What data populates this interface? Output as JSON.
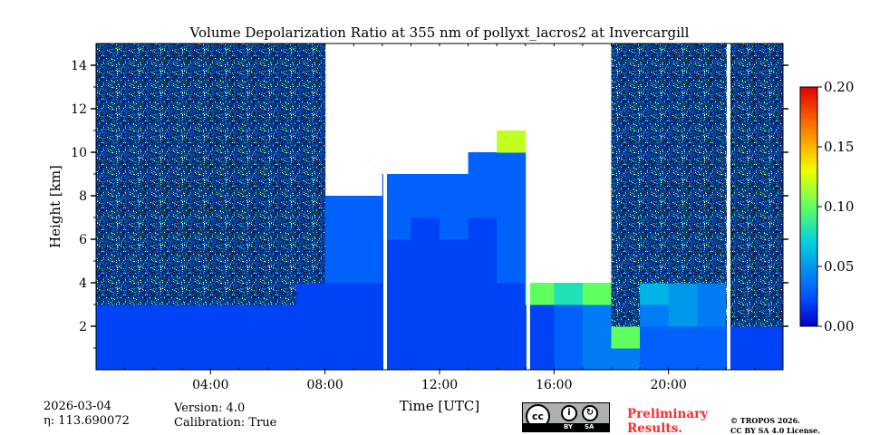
{
  "chart_data": {
    "type": "heatmap",
    "title": "Volume Depolarization Ratio at 355 nm of pollyxt_lacros2 at Invercargill",
    "xlabel": "Time [UTC]",
    "ylabel": "Height [km]",
    "xlim_hours": [
      0,
      24
    ],
    "ylim_km": [
      0,
      15
    ],
    "x_ticks": [
      {
        "v": 4,
        "label": "04:00"
      },
      {
        "v": 8,
        "label": "08:00"
      },
      {
        "v": 12,
        "label": "12:00"
      },
      {
        "v": 16,
        "label": "16:00"
      },
      {
        "v": 20,
        "label": "20:00"
      }
    ],
    "y_ticks": [
      {
        "v": 2,
        "label": "2"
      },
      {
        "v": 4,
        "label": "4"
      },
      {
        "v": 6,
        "label": "6"
      },
      {
        "v": 8,
        "label": "8"
      },
      {
        "v": 10,
        "label": "10"
      },
      {
        "v": 12,
        "label": "12"
      },
      {
        "v": 14,
        "label": "14"
      }
    ],
    "colorbar": {
      "range": [
        0,
        0.2
      ],
      "ticks": [
        {
          "v": 0,
          "label": "0.00"
        },
        {
          "v": 0.05,
          "label": "0.05"
        },
        {
          "v": 0.1,
          "label": "0.10"
        },
        {
          "v": 0.15,
          "label": "0.15"
        },
        {
          "v": 0.2,
          "label": "0.20"
        }
      ],
      "colormap": "jet"
    },
    "matrix_note": "rows = 1 km height bins from 0 km, columns = 1 h bins from 00 UTC; null = no data, N = noisy signal",
    "matrix": [
      [
        0.02,
        0.02,
        0.02,
        0.02,
        0.02,
        0.02,
        0.02,
        0.02,
        0.02,
        0.02,
        0.02,
        0.02,
        0.02,
        0.02,
        0.02,
        0.02,
        0.03,
        0.04,
        0.04,
        0.03,
        0.03,
        0.03,
        0.02,
        0.02
      ],
      [
        0.02,
        0.02,
        0.02,
        0.02,
        0.02,
        0.02,
        0.02,
        0.02,
        0.02,
        0.02,
        0.02,
        0.02,
        0.02,
        0.02,
        0.02,
        0.02,
        0.03,
        0.04,
        0.1,
        0.03,
        0.03,
        0.03,
        0.02,
        0.02
      ],
      [
        0.02,
        0.02,
        0.02,
        0.02,
        0.02,
        0.02,
        0.02,
        0.02,
        0.02,
        0.02,
        0.02,
        0.02,
        0.02,
        0.02,
        0.02,
        0.02,
        0.03,
        0.04,
        "N",
        0.04,
        0.05,
        0.04,
        "N",
        "N"
      ],
      [
        "N",
        "N",
        "N",
        "N",
        "N",
        "N",
        "N",
        0.02,
        0.02,
        0.02,
        0.02,
        0.02,
        0.02,
        0.02,
        0.02,
        0.1,
        0.08,
        0.1,
        "N",
        0.06,
        0.05,
        0.04,
        "N",
        "N"
      ],
      [
        "N",
        "N",
        "N",
        "N",
        "N",
        "N",
        "N",
        "N",
        0.03,
        0.03,
        0.02,
        0.02,
        0.02,
        0.02,
        0.03,
        null,
        null,
        null,
        "N",
        "N",
        "N",
        "N",
        "N",
        "N"
      ],
      [
        "N",
        "N",
        "N",
        "N",
        "N",
        "N",
        "N",
        "N",
        0.03,
        0.03,
        0.02,
        0.02,
        0.02,
        0.02,
        0.03,
        null,
        null,
        null,
        "N",
        "N",
        "N",
        "N",
        "N",
        "N"
      ],
      [
        "N",
        "N",
        "N",
        "N",
        "N",
        "N",
        "N",
        "N",
        0.03,
        0.03,
        0.03,
        0.02,
        0.03,
        0.02,
        0.03,
        null,
        null,
        null,
        "N",
        "N",
        "N",
        "N",
        "N",
        "N"
      ],
      [
        "N",
        "N",
        "N",
        "N",
        "N",
        "N",
        "N",
        "N",
        0.03,
        0.03,
        0.03,
        0.03,
        0.03,
        0.03,
        0.03,
        null,
        null,
        null,
        "N",
        "N",
        "N",
        "N",
        "N",
        "N"
      ],
      [
        "N",
        "N",
        "N",
        "N",
        "N",
        "N",
        "N",
        "N",
        null,
        null,
        0.03,
        0.03,
        0.03,
        0.03,
        0.03,
        null,
        null,
        null,
        "N",
        "N",
        "N",
        "N",
        "N",
        "N"
      ],
      [
        "N",
        "N",
        "N",
        "N",
        "N",
        "N",
        "N",
        "N",
        null,
        null,
        null,
        null,
        null,
        0.03,
        0.03,
        null,
        null,
        null,
        "N",
        "N",
        "N",
        "N",
        "N",
        "N"
      ],
      [
        "N",
        "N",
        "N",
        "N",
        "N",
        "N",
        "N",
        "N",
        null,
        null,
        null,
        null,
        null,
        null,
        0.12,
        null,
        null,
        null,
        "N",
        "N",
        "N",
        "N",
        "N",
        "N"
      ],
      [
        "N",
        "N",
        "N",
        "N",
        "N",
        "N",
        "N",
        "N",
        null,
        null,
        null,
        null,
        null,
        null,
        null,
        null,
        null,
        null,
        "N",
        "N",
        "N",
        "N",
        "N",
        "N"
      ],
      [
        "N",
        "N",
        "N",
        "N",
        "N",
        "N",
        "N",
        "N",
        null,
        null,
        null,
        null,
        null,
        null,
        null,
        null,
        null,
        null,
        "N",
        "N",
        "N",
        "N",
        "N",
        "N"
      ],
      [
        "N",
        "N",
        "N",
        "N",
        "N",
        "N",
        "N",
        "N",
        null,
        null,
        null,
        null,
        null,
        null,
        null,
        null,
        null,
        null,
        "N",
        "N",
        "N",
        "N",
        "N",
        "N"
      ],
      [
        "N",
        "N",
        "N",
        "N",
        "N",
        "N",
        "N",
        "N",
        null,
        null,
        null,
        null,
        null,
        null,
        null,
        null,
        null,
        null,
        "N",
        "N",
        "N",
        "N",
        "N",
        "N"
      ]
    ],
    "gaps_utc": [
      10.1,
      15.1,
      22.1
    ]
  },
  "footer": {
    "date": "2026-03-04",
    "eta": "η: 113.690072",
    "version": "Version: 4.0",
    "calibration": "Calibration: True",
    "preliminary_1": "Preliminary",
    "preliminary_2": "Results.",
    "copyright": "© TROPOS 2026.",
    "license": "CC BY SA 4.0 License.",
    "cc_badge": {
      "cc": "cc",
      "by": "BY",
      "sa": "SA"
    }
  }
}
